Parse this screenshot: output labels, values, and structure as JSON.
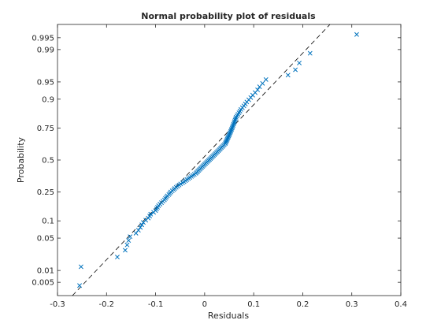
{
  "chart_data": {
    "type": "scatter",
    "title": "Normal probability plot of residuals",
    "xlabel": "Residuals",
    "ylabel": "Probability",
    "xlim": [
      -0.3,
      0.4
    ],
    "y_scale": "normal-probability",
    "xticks": [
      -0.3,
      -0.2,
      -0.1,
      0,
      0.1,
      0.2,
      0.3,
      0.4
    ],
    "xtick_labels": [
      "-0.3",
      "-0.2",
      "-0.1",
      "0",
      "0.1",
      "0.2",
      "0.3",
      "0.4"
    ],
    "yticks": [
      0.005,
      0.01,
      0.05,
      0.1,
      0.25,
      0.5,
      0.75,
      0.9,
      0.95,
      0.99,
      0.995
    ],
    "ytick_labels": [
      "0.005",
      "0.01",
      "0.05",
      "0.1",
      "0.25",
      "0.5",
      "0.75",
      "0.9",
      "0.95",
      "0.99",
      "0.995"
    ],
    "grid": false,
    "marker": "x",
    "marker_color": "#0072BD",
    "reference_line": {
      "style": "dashed",
      "color": "#000000"
    },
    "residuals": [
      -0.255,
      -0.252,
      -0.178,
      -0.162,
      -0.158,
      -0.155,
      -0.152,
      -0.14,
      -0.135,
      -0.131,
      -0.128,
      -0.125,
      -0.12,
      -0.115,
      -0.112,
      -0.11,
      -0.104,
      -0.1,
      -0.098,
      -0.096,
      -0.094,
      -0.091,
      -0.088,
      -0.085,
      -0.082,
      -0.08,
      -0.078,
      -0.076,
      -0.073,
      -0.071,
      -0.069,
      -0.066,
      -0.063,
      -0.061,
      -0.058,
      -0.055,
      -0.052,
      -0.049,
      -0.045,
      -0.042,
      -0.039,
      -0.036,
      -0.033,
      -0.03,
      -0.027,
      -0.024,
      -0.021,
      -0.018,
      -0.016,
      -0.014,
      -0.012,
      -0.01,
      -0.008,
      -0.006,
      -0.004,
      -0.002,
      0.0,
      0.002,
      0.004,
      0.006,
      0.008,
      0.01,
      0.012,
      0.014,
      0.016,
      0.018,
      0.02,
      0.022,
      0.024,
      0.026,
      0.028,
      0.03,
      0.032,
      0.034,
      0.036,
      0.038,
      0.04,
      0.042,
      0.043,
      0.044,
      0.045,
      0.046,
      0.047,
      0.048,
      0.049,
      0.05,
      0.051,
      0.052,
      0.053,
      0.054,
      0.055,
      0.056,
      0.057,
      0.058,
      0.059,
      0.06,
      0.061,
      0.062,
      0.063,
      0.064,
      0.066,
      0.068,
      0.07,
      0.072,
      0.074,
      0.077,
      0.08,
      0.083,
      0.086,
      0.09,
      0.094,
      0.098,
      0.103,
      0.108,
      0.112,
      0.118,
      0.125,
      0.17,
      0.185,
      0.193,
      0.215,
      0.31
    ]
  }
}
